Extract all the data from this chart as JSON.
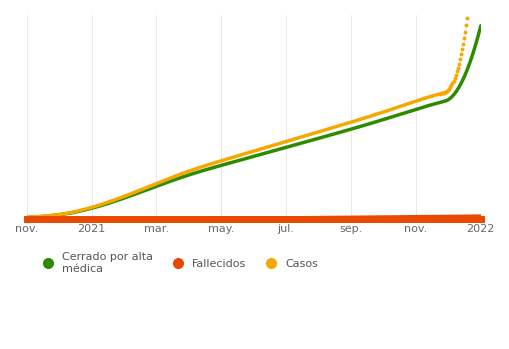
{
  "bg_color": "#ffffff",
  "grid_color": "#e5e5e5",
  "series": {
    "casos": {
      "color": "#f5a800",
      "label": "Casos",
      "linewidth": 2.5
    },
    "cerrado": {
      "color": "#2e8b00",
      "label": "Cerrado por alta\nmédica",
      "linewidth": 2.5
    },
    "fallecidos": {
      "color": "#e84800",
      "label": "Fallecidos",
      "linewidth": 4.0
    }
  },
  "xticklabels": [
    "nov.",
    "2021",
    "mar.",
    "may.",
    "jul.",
    "sep.",
    "nov.",
    "2022"
  ],
  "xticklabel_fontsize": 8,
  "legend_fontsize": 8
}
